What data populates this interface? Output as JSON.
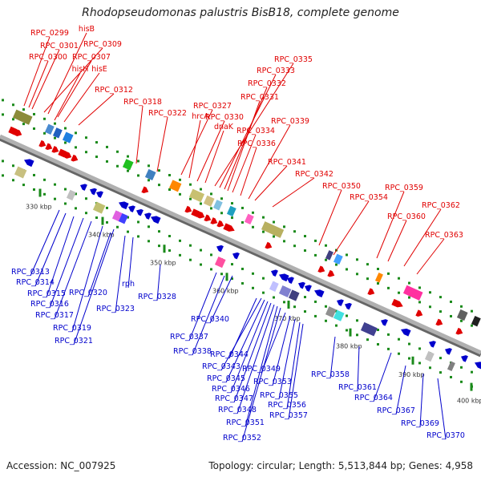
{
  "title": "Rhodopseudomonas palustris BisB18, complete genome",
  "footer": {
    "accession": "Accession: NC_007925",
    "summary": "Topology: circular; Length: 5,513,844 bp; Genes: 4,958"
  },
  "colors": {
    "forward": "#e00000",
    "reverse": "#0000cc",
    "tick": "#1a8a1a",
    "axis": "#999999"
  },
  "kbp_ticks": [
    "330 kbp",
    "340 kbp",
    "350 kbp",
    "360 kbp",
    "370 kbp",
    "380 kbp",
    "390 kbp",
    "400 kbp"
  ],
  "forward_labels": [
    "RPC_0299",
    "RPC_0301",
    "RPC_0309",
    "hisB",
    "RPC_0300",
    "RPC_0307",
    "hisH",
    "hisE",
    "RPC_0312",
    "RPC_0318",
    "RPC_0322",
    "RPC_0327",
    "hrcA",
    "RPC_0330",
    "dnaK",
    "RPC_0335",
    "RPC_0333",
    "RPC_0332",
    "RPC_0331",
    "RPC_0334",
    "RPC_0336",
    "RPC_0339",
    "RPC_0341",
    "RPC_0342",
    "RPC_0350",
    "RPC_0354",
    "RPC_0359",
    "RPC_0360",
    "RPC_0362",
    "RPC_0363"
  ],
  "reverse_labels": [
    "RPC_0313",
    "RPC_0314",
    "RPC_0315",
    "RPC_0316",
    "RPC_0317",
    "RPC_0319",
    "RPC_0321",
    "RPC_0320",
    "RPC_0323",
    "rph",
    "RPC_0328",
    "RPC_0337",
    "RPC_0338",
    "RPC_0340",
    "RPC_0344",
    "RPC_0343",
    "RPC_0345",
    "RPC_0346",
    "RPC_0347",
    "RPC_0348",
    "RPC_0351",
    "RPC_0352",
    "RPC_0349",
    "RPC_0353",
    "RPC_0355",
    "RPC_0356",
    "RPC_0357",
    "RPC_0358",
    "RPC_0361",
    "RPC_0364",
    "RPC_0367",
    "RPC_0369",
    "RPC_0370"
  ]
}
